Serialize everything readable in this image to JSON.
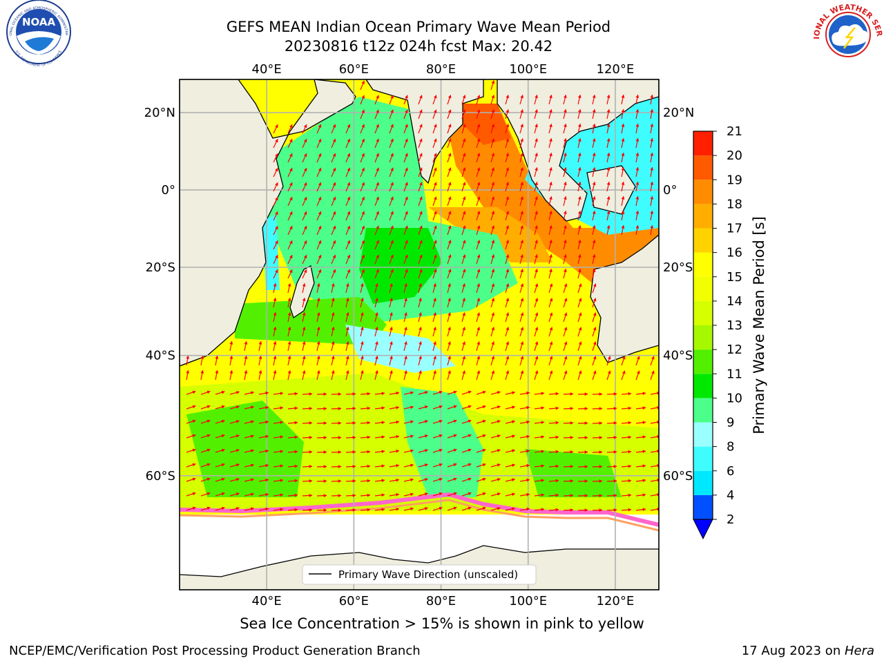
{
  "title_line1": "GEFS MEAN Indian Ocean Primary Wave Mean Period",
  "title_line2": "20230816 t12z 024h fcst   Max: 20.42",
  "map": {
    "lon_range": [
      20,
      130
    ],
    "lat_range": [
      -72,
      28
    ],
    "lon_ticks": [
      "40°E",
      "60°E",
      "80°E",
      "100°E",
      "120°E"
    ],
    "lat_ticks": [
      "20°N",
      "0°",
      "20°S",
      "40°S",
      "60°S"
    ],
    "land_color": "#efeedf",
    "ice_color": "#ffffff",
    "arrow_color": "#ff0000"
  },
  "colorbar": {
    "label": "Primary Wave Mean Period [s]",
    "ticks": [
      "2",
      "4",
      "6",
      "8",
      "9",
      "10",
      "11",
      "12",
      "13",
      "14",
      "15",
      "16",
      "17",
      "18",
      "19",
      "20",
      "21"
    ],
    "colors": [
      "#0050ff",
      "#00e8ff",
      "#3ffcff",
      "#9affff",
      "#4cff8a",
      "#00e800",
      "#52f000",
      "#a6f800",
      "#d6ff00",
      "#f2ff00",
      "#ffff00",
      "#ffd200",
      "#ffae00",
      "#ff8c00",
      "#ff5a00",
      "#ff2000",
      "#ff0000"
    ],
    "extend_color": "#0000ff"
  },
  "legend_label": "Primary Wave Direction (unscaled)",
  "caption": "Sea Ice Concentration > 15% is shown in pink to yellow",
  "footer_left": "NCEP/EMC/Verification Post Processing Product Generation Branch",
  "footer_date": "17 Aug 2023 on ",
  "footer_host": "Hera",
  "logos": {
    "noaa_text": "NOAA",
    "noaa_ring": "NATIONAL OCEANIC AND ATMOSPHERIC ADMINISTRATION",
    "noaa_ring_bottom": "U.S. DEPARTMENT OF COMMERCE",
    "nws_ring": "NATIONAL WEATHER SERVICE"
  }
}
